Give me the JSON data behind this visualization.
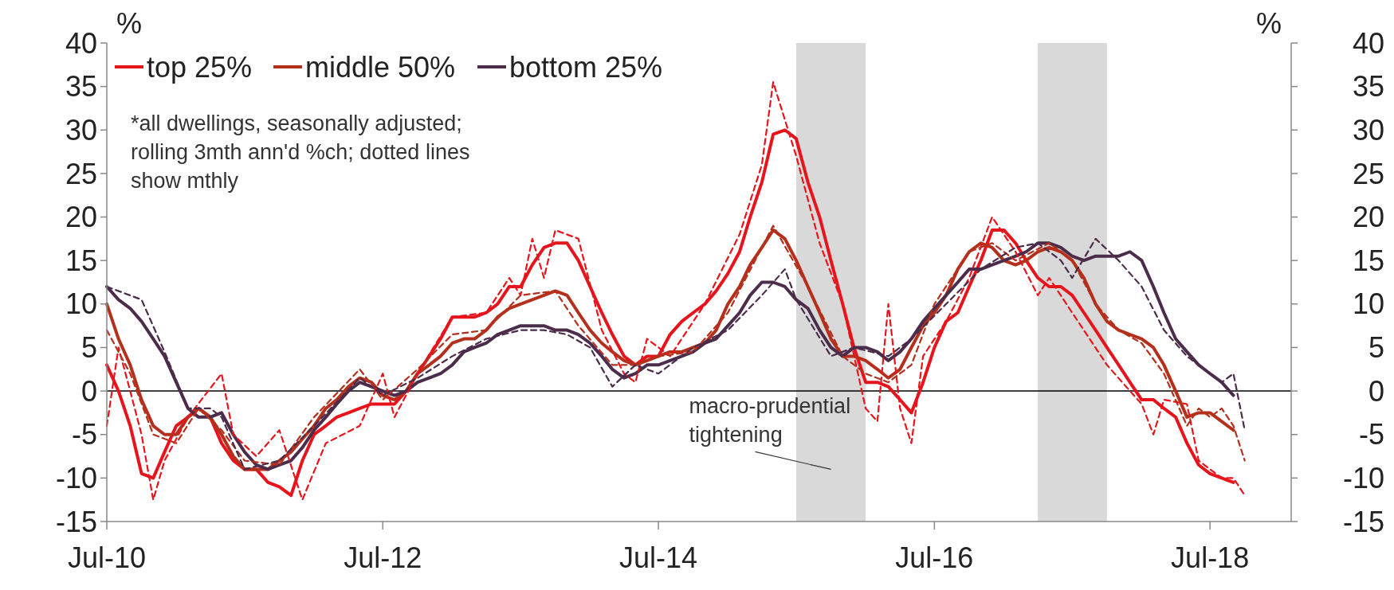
{
  "chart_data": {
    "type": "line",
    "ylabel": "%",
    "y2label": "%",
    "x": [
      "2010-07",
      "2010-08",
      "2010-09",
      "2010-10",
      "2010-11",
      "2010-12",
      "2011-01",
      "2011-02",
      "2011-03",
      "2011-04",
      "2011-05",
      "2011-06",
      "2011-07",
      "2011-08",
      "2011-09",
      "2011-10",
      "2011-11",
      "2011-12",
      "2012-01",
      "2012-02",
      "2012-03",
      "2012-04",
      "2012-05",
      "2012-06",
      "2012-07",
      "2012-08",
      "2012-09",
      "2012-10",
      "2012-11",
      "2012-12",
      "2013-01",
      "2013-02",
      "2013-03",
      "2013-04",
      "2013-05",
      "2013-06",
      "2013-07",
      "2013-08",
      "2013-09",
      "2013-10",
      "2013-11",
      "2013-12",
      "2014-01",
      "2014-02",
      "2014-03",
      "2014-04",
      "2014-05",
      "2014-06",
      "2014-07",
      "2014-08",
      "2014-09",
      "2014-10",
      "2014-11",
      "2014-12",
      "2015-01",
      "2015-02",
      "2015-03",
      "2015-04",
      "2015-05",
      "2015-06",
      "2015-07",
      "2015-08",
      "2015-09",
      "2015-10",
      "2015-11",
      "2015-12",
      "2016-01",
      "2016-02",
      "2016-03",
      "2016-04",
      "2016-05",
      "2016-06",
      "2016-07",
      "2016-08",
      "2016-09",
      "2016-10",
      "2016-11",
      "2016-12",
      "2017-01",
      "2017-02",
      "2017-03",
      "2017-04",
      "2017-05",
      "2017-06",
      "2017-07",
      "2017-08",
      "2017-09",
      "2017-10",
      "2017-11",
      "2017-12",
      "2018-01",
      "2018-02",
      "2018-03",
      "2018-04",
      "2018-05",
      "2018-06",
      "2018-07",
      "2018-08",
      "2018-09"
    ],
    "series": [
      {
        "name": "top 25%",
        "color": "#e8141c",
        "line_style": "solid",
        "values": [
          3,
          0,
          -4,
          -9.5,
          -10,
          -7,
          -4,
          -3,
          -2,
          -3,
          -6,
          -8,
          -9,
          -9,
          -10.5,
          -11,
          -12,
          -8,
          -5,
          -4,
          -3,
          -2.5,
          -2,
          -1.5,
          -1.5,
          -1.5,
          0,
          2,
          4,
          6,
          8.5,
          8.5,
          8.5,
          9,
          10,
          12,
          12,
          14.5,
          16.5,
          17,
          17,
          15,
          12,
          9,
          6.5,
          4,
          3,
          4,
          4,
          6.5,
          8,
          9,
          10,
          11.5,
          13.5,
          16,
          20,
          24,
          29.5,
          30,
          29,
          24,
          20,
          15,
          10,
          5,
          1,
          1,
          0.5,
          -1,
          -2.5,
          1,
          5,
          8,
          9,
          12,
          15,
          18.5,
          18.5,
          17,
          15,
          13,
          12,
          12,
          11,
          9,
          7,
          5,
          3,
          1,
          -1,
          -1,
          -2,
          -3,
          -6,
          -8.5,
          -9.5,
          -10,
          -10.5
        ]
      },
      {
        "name": "middle 50%",
        "color": "#b5301c",
        "line_style": "solid",
        "values": [
          10,
          6,
          3,
          -1,
          -4,
          -5,
          -5,
          -3,
          -2,
          -3,
          -5,
          -7.5,
          -9,
          -9,
          -9,
          -8,
          -7,
          -5.5,
          -4,
          -2,
          -1,
          0.5,
          1.5,
          1,
          -0.5,
          -1,
          0,
          2,
          3,
          4,
          5.5,
          6,
          6,
          7,
          8.5,
          9.5,
          10,
          10.5,
          11,
          11.5,
          11,
          9,
          7,
          5.5,
          4.5,
          3.5,
          3,
          3.5,
          4,
          4.5,
          4.5,
          5,
          5.5,
          7,
          10,
          12,
          14.5,
          16.5,
          18.5,
          17.5,
          15,
          12,
          9,
          6,
          4,
          4,
          3.5,
          2.5,
          1.5,
          2.5,
          5,
          7.5,
          9,
          11,
          14,
          16,
          17,
          16.5,
          15,
          14.5,
          15,
          16,
          16.5,
          16,
          15,
          13,
          10,
          8,
          7,
          6.5,
          6,
          5,
          3,
          0,
          -3,
          -2.5,
          -2.5,
          -3.5,
          -4.5
        ]
      },
      {
        "name": "bottom 25%",
        "color": "#4b2c4a",
        "line_style": "solid",
        "values": [
          12,
          10.5,
          9.5,
          8,
          6,
          4,
          1,
          -2,
          -3,
          -3,
          -2.5,
          -5,
          -7,
          -8.5,
          -9,
          -8.5,
          -8,
          -6.5,
          -4.5,
          -3,
          -1.5,
          0,
          1,
          0.5,
          0,
          -0.5,
          0,
          1,
          1.5,
          2,
          3,
          4.5,
          5,
          5.5,
          6.5,
          7,
          7.5,
          7.5,
          7.5,
          7,
          7,
          6.5,
          5.5,
          4,
          2.5,
          1.5,
          2,
          3,
          3,
          3.5,
          4,
          4.5,
          5.5,
          6,
          7.5,
          9,
          11,
          12.5,
          12.5,
          12,
          10.5,
          9.5,
          7,
          5,
          4,
          5,
          5,
          4.5,
          3.5,
          4.5,
          6,
          8,
          9.5,
          11,
          12.5,
          14,
          14,
          14.5,
          15,
          15.5,
          16,
          17,
          17,
          16.5,
          15.5,
          15,
          15.5,
          15.5,
          15.5,
          16,
          15,
          12,
          9,
          6,
          4.5,
          3,
          2,
          1,
          -0.5
        ]
      },
      {
        "color": "#e8141c",
        "line_style": "dashed",
        "x": [
          "2010-07",
          "2010-08",
          "2010-09",
          "2010-10",
          "2010-11",
          "2010-12",
          "2011-02",
          "2011-05",
          "2011-06",
          "2011-08",
          "2011-10",
          "2011-12",
          "2012-02",
          "2012-05",
          "2012-07",
          "2012-08",
          "2012-10",
          "2013-01",
          "2013-04",
          "2013-06",
          "2013-07",
          "2013-08",
          "2013-09",
          "2013-10",
          "2013-12",
          "2014-02",
          "2014-04",
          "2014-05",
          "2014-06",
          "2014-08",
          "2014-11",
          "2015-02",
          "2015-04",
          "2015-05",
          "2015-07",
          "2015-09",
          "2015-11",
          "2016-01",
          "2016-02",
          "2016-03",
          "2016-04",
          "2016-05",
          "2016-06",
          "2016-08",
          "2016-10",
          "2016-12",
          "2017-02",
          "2017-04",
          "2017-05",
          "2017-07",
          "2017-10",
          "2017-12",
          "2018-01",
          "2018-02",
          "2018-03",
          "2018-05",
          "2018-06",
          "2018-08",
          "2018-09",
          "2018-10"
        ],
        "values": [
          -4,
          5,
          0,
          -5,
          -12.5,
          -8,
          -3,
          2,
          -5,
          -7.5,
          -4.5,
          -12.5,
          -6,
          -4,
          2,
          -3,
          2,
          8.5,
          9,
          13,
          11,
          17.5,
          13,
          18.5,
          17.5,
          7,
          2,
          1,
          6,
          4,
          10,
          18,
          26,
          35.5,
          27,
          17,
          10,
          -2,
          -3.5,
          10,
          -2,
          -6,
          4,
          8,
          13,
          20,
          16,
          11,
          13,
          9,
          3,
          0,
          -1.5,
          -5,
          -1,
          -1.5,
          -8,
          -10,
          -10,
          -12
        ]
      },
      {
        "color": "#b5301c",
        "line_style": "dashed",
        "x": [
          "2010-07",
          "2010-09",
          "2010-11",
          "2011-01",
          "2011-03",
          "2011-05",
          "2011-07",
          "2011-10",
          "2012-01",
          "2012-05",
          "2012-07",
          "2012-10",
          "2013-01",
          "2013-04",
          "2013-07",
          "2013-10",
          "2013-12",
          "2014-03",
          "2014-05",
          "2014-07",
          "2014-10",
          "2015-01",
          "2015-05",
          "2015-08",
          "2015-11",
          "2016-01",
          "2016-03",
          "2016-05",
          "2016-07",
          "2016-10",
          "2016-12",
          "2017-02",
          "2017-05",
          "2017-07",
          "2017-09",
          "2017-11",
          "2018-01",
          "2018-03",
          "2018-05",
          "2018-06",
          "2018-07",
          "2018-08",
          "2018-09",
          "2018-10"
        ],
        "values": [
          7,
          2,
          -5,
          -6,
          -2,
          -4.5,
          -8,
          -8.5,
          -3,
          2.5,
          -1,
          2.5,
          6.5,
          7,
          11,
          11.5,
          7.5,
          3,
          3,
          4,
          4.5,
          9,
          19,
          12,
          4,
          2,
          1,
          3,
          10,
          16,
          17,
          15,
          17,
          15,
          10,
          7,
          5.5,
          2,
          -4,
          -2,
          -3,
          -2,
          -4,
          -8
        ]
      },
      {
        "color": "#4b2c4a",
        "line_style": "dashed",
        "x": [
          "2010-07",
          "2010-10",
          "2010-12",
          "2011-02",
          "2011-04",
          "2011-05",
          "2011-07",
          "2011-10",
          "2012-01",
          "2012-05",
          "2012-07",
          "2012-10",
          "2013-01",
          "2013-04",
          "2013-07",
          "2013-09",
          "2013-11",
          "2014-01",
          "2014-03",
          "2014-05",
          "2014-07",
          "2014-10",
          "2015-01",
          "2015-04",
          "2015-06",
          "2015-07",
          "2015-10",
          "2015-12",
          "2016-03",
          "2016-05",
          "2016-08",
          "2016-11",
          "2017-02",
          "2017-04",
          "2017-06",
          "2017-07",
          "2017-09",
          "2017-11",
          "2018-01",
          "2018-03",
          "2018-05",
          "2018-07",
          "2018-08",
          "2018-09",
          "2018-10"
        ],
        "values": [
          12,
          10.5,
          4.5,
          -2,
          -2,
          -3,
          -9,
          -8,
          -4,
          1.5,
          -0.5,
          1.5,
          4,
          6,
          7,
          7,
          6.5,
          5,
          0.5,
          3,
          2,
          5,
          7,
          11,
          14,
          10.5,
          4,
          5,
          4,
          6,
          10,
          14,
          16.5,
          17,
          15,
          13,
          17.5,
          15,
          12,
          7,
          4,
          2,
          1,
          2,
          -4.5
        ]
      }
    ],
    "xlim": [
      "2010-07",
      "2019-02"
    ],
    "xticks": [
      {
        "value": "2010-07",
        "label": "Jul-10"
      },
      {
        "value": "2012-07",
        "label": "Jul-12"
      },
      {
        "value": "2014-07",
        "label": "Jul-14"
      },
      {
        "value": "2016-07",
        "label": "Jul-16"
      },
      {
        "value": "2018-07",
        "label": "Jul-18"
      }
    ],
    "ylim": [
      -15,
      40
    ],
    "yticks": [
      -15,
      -10,
      -5,
      0,
      5,
      10,
      15,
      20,
      25,
      30,
      35,
      40
    ],
    "y2lim": [
      -15,
      40
    ],
    "y2ticks": [
      -15,
      -10,
      -5,
      0,
      5,
      10,
      15,
      20,
      25,
      30,
      35,
      40
    ],
    "ref_lines": [
      {
        "axis": "y",
        "value": 0,
        "color": "#000000"
      }
    ],
    "bands": [
      {
        "axis": "x",
        "from": "2015-07",
        "to": "2016-01",
        "color": "#d9d9d9"
      },
      {
        "axis": "x",
        "from": "2017-04",
        "to": "2017-10",
        "color": "#d9d9d9"
      }
    ],
    "annotations": [
      "*all dwellings, seasonally adjusted; rolling 3mth ann'd %ch; dotted lines show mthly",
      "macro-prudential tightening"
    ],
    "legend": "top left",
    "grid": false
  }
}
